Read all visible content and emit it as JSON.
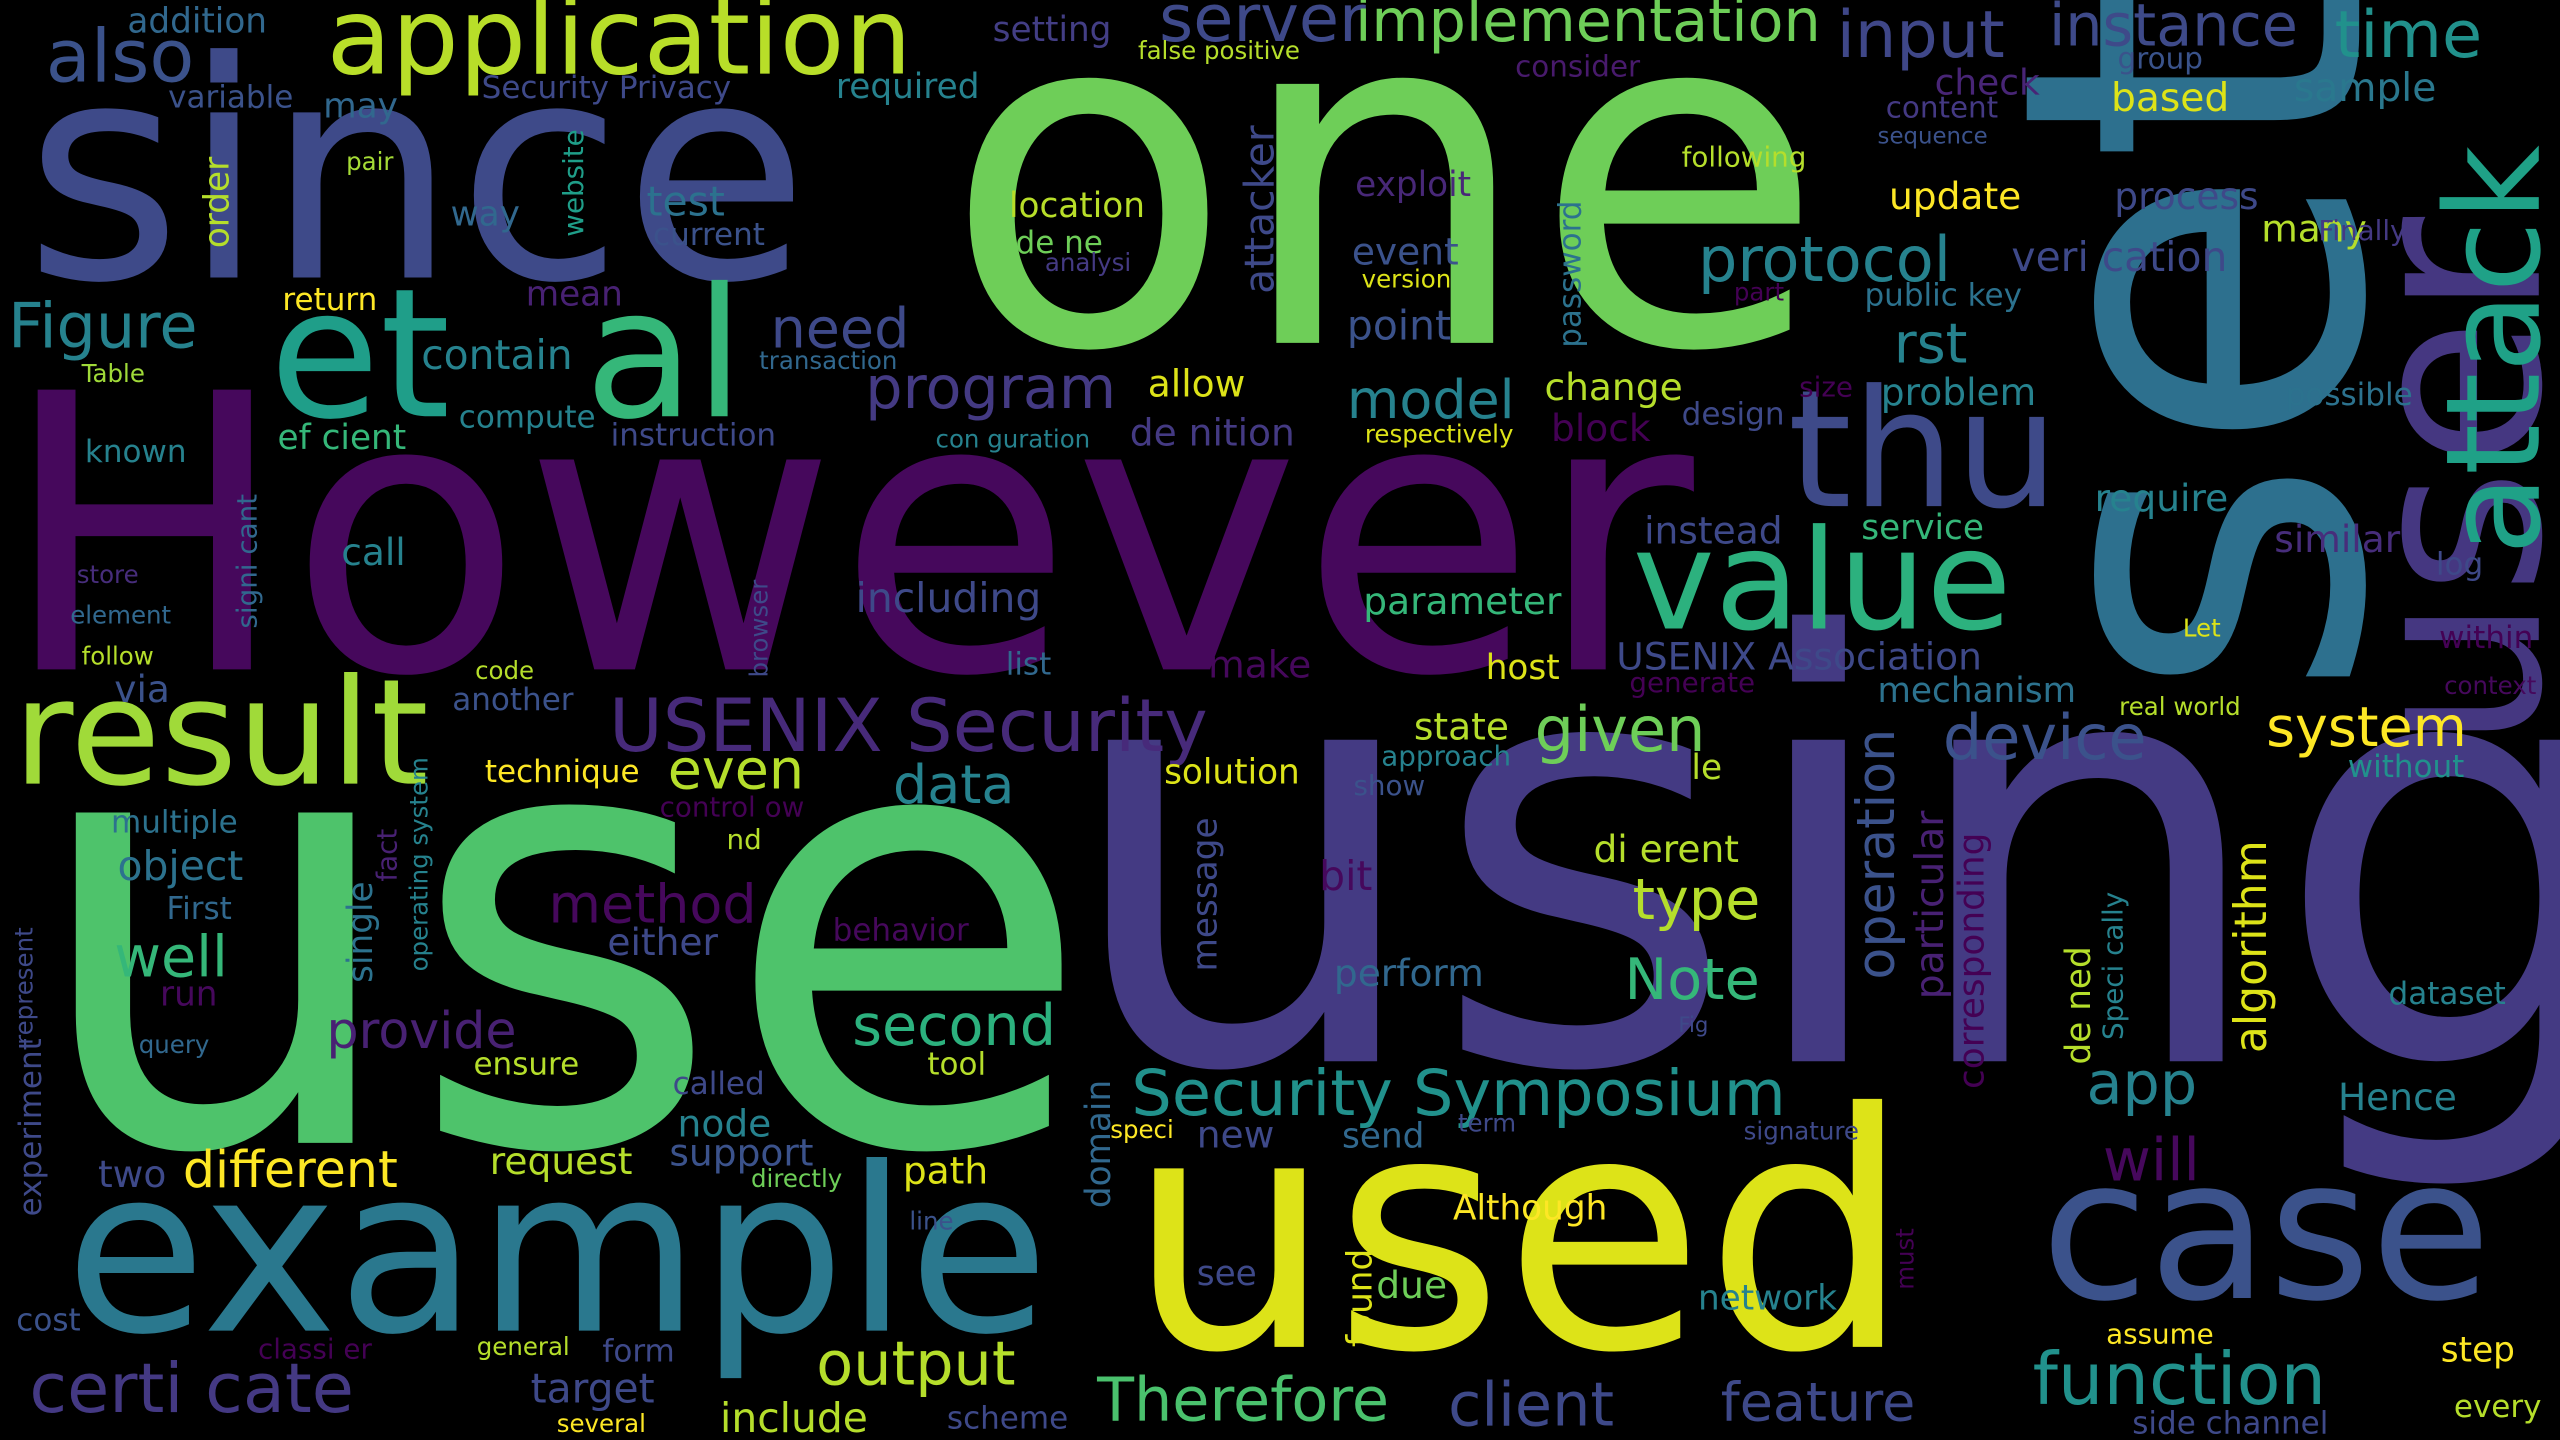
{
  "words": [
    {
      "text": "use",
      "color": "#4ec36b"
    },
    {
      "text": "using",
      "color": "#443a83"
    },
    {
      "text": "However",
      "color": "#46085c"
    },
    {
      "text": "one",
      "color": "#6ece58"
    },
    {
      "text": "set",
      "color": "#2d708e"
    },
    {
      "text": "since",
      "color": "#3e4a89"
    },
    {
      "text": "used",
      "color": "#dde318"
    },
    {
      "text": "user",
      "color": "#453781"
    },
    {
      "text": "example",
      "color": "#2a788e"
    },
    {
      "text": "case",
      "color": "#3b528b"
    },
    {
      "text": "attack",
      "color": "#1fa187"
    },
    {
      "text": "et",
      "color": "#1f9e89"
    },
    {
      "text": "al",
      "color": "#35b779"
    },
    {
      "text": "result",
      "color": "#a0da39"
    },
    {
      "text": "value",
      "color": "#2cb17e"
    },
    {
      "text": "thu",
      "color": "#3e4a89"
    },
    {
      "text": "application",
      "color": "#b8de29"
    },
    {
      "text": "also",
      "color": "#3b528b"
    },
    {
      "text": "server",
      "color": "#3e4989"
    },
    {
      "text": "implementation",
      "color": "#6ece58"
    },
    {
      "text": "input",
      "color": "#3f4788"
    },
    {
      "text": "instance",
      "color": "#3e4a89"
    },
    {
      "text": "time",
      "color": "#21918c"
    },
    {
      "text": "group",
      "color": "#3a538b"
    },
    {
      "text": "sample",
      "color": "#2a788e"
    },
    {
      "text": "based",
      "color": "#dde318"
    },
    {
      "text": "content",
      "color": "#443983"
    },
    {
      "text": "sequence",
      "color": "#3b528b"
    },
    {
      "text": "check",
      "color": "#482576"
    },
    {
      "text": "consider",
      "color": "#481a6c"
    },
    {
      "text": "false positive",
      "color": "#b5de2b"
    },
    {
      "text": "Security Privacy",
      "color": "#3e4989"
    },
    {
      "text": "required",
      "color": "#26828e"
    },
    {
      "text": "setting",
      "color": "#433e85"
    },
    {
      "text": "addition",
      "color": "#31688e"
    },
    {
      "text": "variable",
      "color": "#3b528b"
    },
    {
      "text": "may",
      "color": "#31688e"
    },
    {
      "text": "pair",
      "color": "#a5db36"
    },
    {
      "text": "way",
      "color": "#31688e"
    },
    {
      "text": "website",
      "color": "#1f9e89"
    },
    {
      "text": "order",
      "color": "#b5de2b"
    },
    {
      "text": "test",
      "color": "#2c728e"
    },
    {
      "text": "current",
      "color": "#3b528b"
    },
    {
      "text": "location",
      "color": "#b8de29"
    },
    {
      "text": "de ne",
      "color": "#6ece58"
    },
    {
      "text": "analysi",
      "color": "#443a83"
    },
    {
      "text": "exploit",
      "color": "#482878"
    },
    {
      "text": "attacker",
      "color": "#3e4989"
    },
    {
      "text": "following",
      "color": "#b5de2b"
    },
    {
      "text": "update",
      "color": "#fde725"
    },
    {
      "text": "process",
      "color": "#3e4989"
    },
    {
      "text": "many",
      "color": "#b5de2b"
    },
    {
      "text": "Finally",
      "color": "#443983"
    },
    {
      "text": "veri cation",
      "color": "#3e4989"
    },
    {
      "text": "protocol",
      "color": "#26828e"
    },
    {
      "text": "password",
      "color": "#2c728e"
    },
    {
      "text": "event",
      "color": "#3b528b"
    },
    {
      "text": "version",
      "color": "#dde318"
    },
    {
      "text": "part",
      "color": "#440154"
    },
    {
      "text": "public key",
      "color": "#2c728e"
    },
    {
      "text": "Figure",
      "color": "#26828e"
    },
    {
      "text": "return",
      "color": "#fde725"
    },
    {
      "text": "mean",
      "color": "#482173"
    },
    {
      "text": "transaction",
      "color": "#31688e"
    },
    {
      "text": "need",
      "color": "#3e4989"
    },
    {
      "text": "contain",
      "color": "#26828e"
    },
    {
      "text": "Table",
      "color": "#a0da39"
    },
    {
      "text": "point",
      "color": "#3b528b"
    },
    {
      "text": "rst",
      "color": "#26828e"
    },
    {
      "text": "program",
      "color": "#443a83"
    },
    {
      "text": "allow",
      "color": "#dde318"
    },
    {
      "text": "model",
      "color": "#26828e"
    },
    {
      "text": "change",
      "color": "#b5de2b"
    },
    {
      "text": "design",
      "color": "#3e4989"
    },
    {
      "text": "size",
      "color": "#440154"
    },
    {
      "text": "problem",
      "color": "#26828e"
    },
    {
      "text": "possible",
      "color": "#2c728e"
    },
    {
      "text": "compute",
      "color": "#26828e"
    },
    {
      "text": "ef cient",
      "color": "#35b779"
    },
    {
      "text": "instruction",
      "color": "#3e4989"
    },
    {
      "text": "con guration",
      "color": "#26828e"
    },
    {
      "text": "de nition",
      "color": "#443a83"
    },
    {
      "text": "respectively",
      "color": "#dde318"
    },
    {
      "text": "block",
      "color": "#440154"
    },
    {
      "text": "known",
      "color": "#26828e"
    },
    {
      "text": "signi cant",
      "color": "#31688e"
    },
    {
      "text": "require",
      "color": "#26828e"
    },
    {
      "text": "instead",
      "color": "#3e4989"
    },
    {
      "text": "service",
      "color": "#35b779"
    },
    {
      "text": "similar",
      "color": "#472d7b"
    },
    {
      "text": "log",
      "color": "#3e4989"
    },
    {
      "text": "call",
      "color": "#26828e"
    },
    {
      "text": "store",
      "color": "#472d7b"
    },
    {
      "text": "including",
      "color": "#3e4989"
    },
    {
      "text": "parameter",
      "color": "#35b779"
    },
    {
      "text": "Let",
      "color": "#dde318"
    },
    {
      "text": "element",
      "color": "#31688e"
    },
    {
      "text": "browser",
      "color": "#3e4989"
    },
    {
      "text": "within",
      "color": "#440154"
    },
    {
      "text": "follow",
      "color": "#b5de2b"
    },
    {
      "text": "list",
      "color": "#31688e"
    },
    {
      "text": "make",
      "color": "#46085c"
    },
    {
      "text": "host",
      "color": "#dde318"
    },
    {
      "text": "USENIX Association",
      "color": "#3e4989"
    },
    {
      "text": "code",
      "color": "#b5de2b"
    },
    {
      "text": "generate",
      "color": "#440154"
    },
    {
      "text": "context",
      "color": "#46085c"
    },
    {
      "text": "via",
      "color": "#3b528b"
    },
    {
      "text": "another",
      "color": "#3b528b"
    },
    {
      "text": "USENIX Security",
      "color": "#472a7a"
    },
    {
      "text": "mechanism",
      "color": "#2c728e"
    },
    {
      "text": "real world",
      "color": "#b5de2b"
    },
    {
      "text": "state",
      "color": "#b5de2b"
    },
    {
      "text": "given",
      "color": "#6ece58"
    },
    {
      "text": "device",
      "color": "#3b528b"
    },
    {
      "text": "system",
      "color": "#fde725"
    },
    {
      "text": "approach",
      "color": "#26828e"
    },
    {
      "text": "le",
      "color": "#b5de2b"
    },
    {
      "text": "without",
      "color": "#21918c"
    },
    {
      "text": "even",
      "color": "#b5de2b"
    },
    {
      "text": "data",
      "color": "#26828e"
    },
    {
      "text": "technique",
      "color": "#fde725"
    },
    {
      "text": "solution",
      "color": "#dde318"
    },
    {
      "text": "show",
      "color": "#3b528b"
    },
    {
      "text": "operating system",
      "color": "#26828e"
    },
    {
      "text": "control ow",
      "color": "#440154"
    },
    {
      "text": "multiple",
      "color": "#2c728e"
    },
    {
      "text": "fact",
      "color": "#482173"
    },
    {
      "text": "nd",
      "color": "#b5de2b"
    },
    {
      "text": "di erent",
      "color": "#b5de2b"
    },
    {
      "text": "operation",
      "color": "#3b528b"
    },
    {
      "text": "object",
      "color": "#2c728e"
    },
    {
      "text": "bit",
      "color": "#46085c"
    },
    {
      "text": "type",
      "color": "#b5de2b"
    },
    {
      "text": "particular",
      "color": "#482173"
    },
    {
      "text": "algorithm",
      "color": "#dde318"
    },
    {
      "text": "Speci cally",
      "color": "#26828e"
    },
    {
      "text": "de ned",
      "color": "#b5de2b"
    },
    {
      "text": "message",
      "color": "#3e4989"
    },
    {
      "text": "method",
      "color": "#46085c"
    },
    {
      "text": "First",
      "color": "#31688e"
    },
    {
      "text": "single",
      "color": "#2c728e"
    },
    {
      "text": "behavior",
      "color": "#46085c"
    },
    {
      "text": "either",
      "color": "#3e4989"
    },
    {
      "text": "well",
      "color": "#35b779"
    },
    {
      "text": "represent",
      "color": "#3e4989"
    },
    {
      "text": "corresponding",
      "color": "#440154"
    },
    {
      "text": "Note",
      "color": "#35b779"
    },
    {
      "text": "perform",
      "color": "#31688e"
    },
    {
      "text": "run",
      "color": "#46085c"
    },
    {
      "text": "dataset",
      "color": "#26828e"
    },
    {
      "text": "provide",
      "color": "#482173"
    },
    {
      "text": "second",
      "color": "#2cb17e"
    },
    {
      "text": "Fig",
      "color": "#3e4989"
    },
    {
      "text": "query",
      "color": "#31688e"
    },
    {
      "text": "experiment",
      "color": "#3e4989"
    },
    {
      "text": "ensure",
      "color": "#b5de2b"
    },
    {
      "text": "tool",
      "color": "#b5de2b"
    },
    {
      "text": "Security Symposium",
      "color": "#21918c"
    },
    {
      "text": "called",
      "color": "#3e4989"
    },
    {
      "text": "domain",
      "color": "#31688e"
    },
    {
      "text": "app",
      "color": "#26828e"
    },
    {
      "text": "Hence",
      "color": "#26828e"
    },
    {
      "text": "node",
      "color": "#26828e"
    },
    {
      "text": "speci",
      "color": "#fde725"
    },
    {
      "text": "term",
      "color": "#3e4989"
    },
    {
      "text": "new",
      "color": "#3e4989"
    },
    {
      "text": "send",
      "color": "#31688e"
    },
    {
      "text": "signature",
      "color": "#3e4989"
    },
    {
      "text": "support",
      "color": "#3b528b"
    },
    {
      "text": "different",
      "color": "#fde725"
    },
    {
      "text": "request",
      "color": "#b5de2b"
    },
    {
      "text": "path",
      "color": "#dde318"
    },
    {
      "text": "will",
      "color": "#46085c"
    },
    {
      "text": "two",
      "color": "#3e4989"
    },
    {
      "text": "directly",
      "color": "#6ece58"
    },
    {
      "text": "Although",
      "color": "#fde725"
    },
    {
      "text": "line",
      "color": "#3b528b"
    },
    {
      "text": "must",
      "color": "#440154"
    },
    {
      "text": "see",
      "color": "#3e4989"
    },
    {
      "text": "due",
      "color": "#6ece58"
    },
    {
      "text": "found",
      "color": "#dde318"
    },
    {
      "text": "network",
      "color": "#26828e"
    },
    {
      "text": "cost",
      "color": "#3b528b"
    },
    {
      "text": "assume",
      "color": "#fde725"
    },
    {
      "text": "classi er",
      "color": "#440154"
    },
    {
      "text": "general",
      "color": "#b5de2b"
    },
    {
      "text": "form",
      "color": "#3e4989"
    },
    {
      "text": "step",
      "color": "#fde725"
    },
    {
      "text": "output",
      "color": "#b5de2b"
    },
    {
      "text": "function",
      "color": "#21918c"
    },
    {
      "text": "target",
      "color": "#3e4989"
    },
    {
      "text": "certi cate",
      "color": "#443983"
    },
    {
      "text": "Therefore",
      "color": "#4ac16d"
    },
    {
      "text": "client",
      "color": "#3e4989"
    },
    {
      "text": "feature",
      "color": "#3e4989"
    },
    {
      "text": "include",
      "color": "#b5de2b"
    },
    {
      "text": "scheme",
      "color": "#3e4989"
    },
    {
      "text": "several",
      "color": "#fde725"
    },
    {
      "text": "side channel",
      "color": "#3e4989"
    },
    {
      "text": "every",
      "color": "#b5de2b"
    }
  ]
}
